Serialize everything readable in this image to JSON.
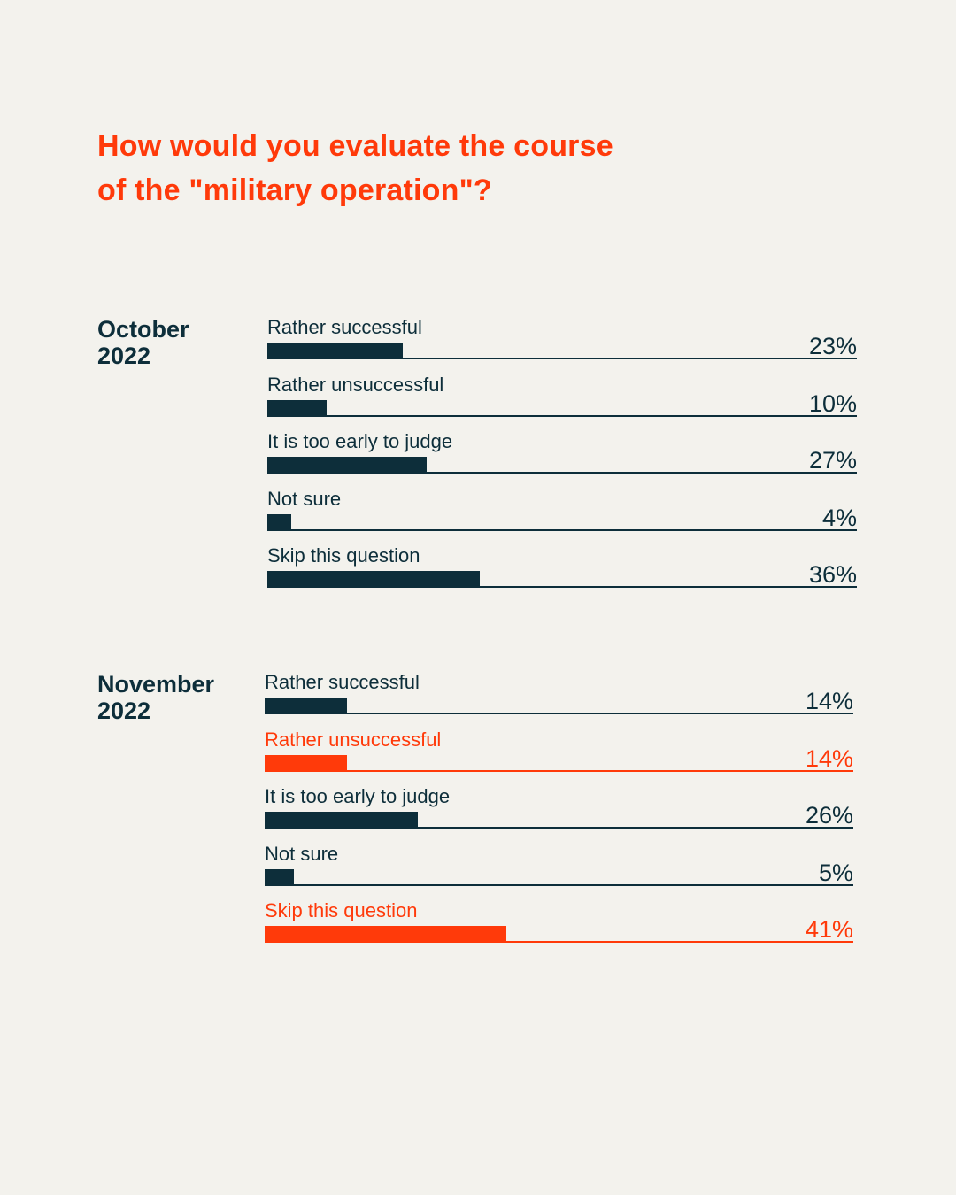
{
  "title_lines": [
    "How would you evaluate the course",
    "of the \"military operation\"?"
  ],
  "colors": {
    "background": "#f3f2ed",
    "dark": "#0d2e3a",
    "accent": "#ff3a0a"
  },
  "chart_data": [
    {
      "type": "bar",
      "orientation": "horizontal",
      "group_label": [
        "October",
        "2022"
      ],
      "categories": [
        "Rather successful",
        "Rather unsuccessful",
        "It is too early to judge",
        "Not sure",
        "Skip this question"
      ],
      "values": [
        23,
        10,
        27,
        4,
        36
      ],
      "value_labels": [
        "23%",
        "10%",
        "27%",
        "4%",
        "36%"
      ],
      "highlighted": [
        false,
        false,
        false,
        false,
        false
      ],
      "xlim": [
        0,
        100
      ]
    },
    {
      "type": "bar",
      "orientation": "horizontal",
      "group_label": [
        "November",
        "2022"
      ],
      "categories": [
        "Rather successful",
        "Rather unsuccessful",
        "It is too early to judge",
        "Not sure",
        "Skip this question"
      ],
      "values": [
        14,
        14,
        26,
        5,
        41
      ],
      "value_labels": [
        "14%",
        "14%",
        "26%",
        "5%",
        "41%"
      ],
      "highlighted": [
        false,
        true,
        false,
        false,
        true
      ],
      "xlim": [
        0,
        100
      ]
    }
  ]
}
